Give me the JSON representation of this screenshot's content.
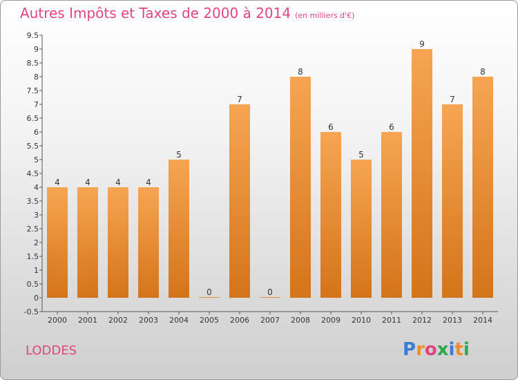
{
  "header": {
    "title": "Autres Impôts et Taxes de 2000 à 2014",
    "unit": "(en milliers d'€)"
  },
  "footer": {
    "location": "LODDES",
    "logo_letters": [
      "P",
      "r",
      "o",
      "x",
      "i",
      "t",
      "i"
    ],
    "logo_colors": [
      "#3a7dd0",
      "#ef8d2b",
      "#e0457b",
      "#2aa84a",
      "#3a7dd0",
      "#ef8d2b",
      "#2aa84a"
    ]
  },
  "colors": {
    "bar_top": "#f6a552",
    "bar_bottom": "#d4741a",
    "title": "#e0457b"
  },
  "chart_data": {
    "type": "bar",
    "title": "Autres Impôts et Taxes de 2000 à 2014",
    "xlabel": "",
    "ylabel": "",
    "categories": [
      "2000",
      "2001",
      "2002",
      "2003",
      "2004",
      "2005",
      "2006",
      "2007",
      "2008",
      "2009",
      "2010",
      "2011",
      "2012",
      "2013",
      "2014"
    ],
    "values": [
      4,
      4,
      4,
      4,
      5,
      0,
      7,
      0,
      8,
      6,
      5,
      6,
      9,
      7,
      8
    ],
    "ylim": [
      -0.5,
      9.5
    ],
    "yticks": [
      "-0.5",
      "0",
      "0.5",
      "1",
      "1.5",
      "2",
      "2.5",
      "3",
      "3.5",
      "4",
      "4.5",
      "5",
      "5.5",
      "6",
      "6.5",
      "7",
      "7.5",
      "8",
      "8.5",
      "9",
      "9.5"
    ],
    "grid": false,
    "legend": "none"
  }
}
